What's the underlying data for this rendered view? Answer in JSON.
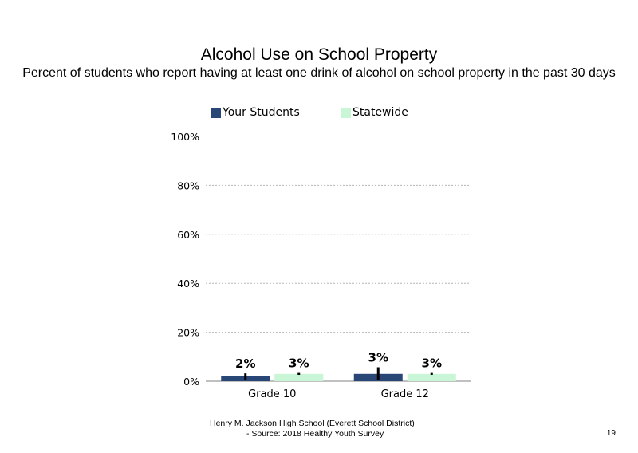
{
  "chart_data": {
    "type": "bar",
    "title": "Alcohol Use on School Property",
    "subtitle": "Percent of students who report having at least one drink of alcohol on school property in the past 30 days",
    "categories": [
      "Grade 10",
      "Grade 12"
    ],
    "series": [
      {
        "name": "Your Students",
        "values": [
          2,
          3
        ],
        "labels": [
          "2%",
          "3%"
        ],
        "color": "#284776",
        "error": [
          [
            0.5,
            3.2
          ],
          [
            0.6,
            5.7
          ]
        ]
      },
      {
        "name": "Statewide",
        "values": [
          3,
          3
        ],
        "labels": [
          "3%",
          "3%"
        ],
        "color": "#c9f6d6",
        "error": [
          [
            2.6,
            3.4
          ],
          [
            2.6,
            3.4
          ]
        ]
      }
    ],
    "ylim": [
      0,
      100
    ],
    "yticks": [
      "0%",
      "20%",
      "40%",
      "60%",
      "80%",
      "100%"
    ],
    "ytick_values": [
      0,
      20,
      40,
      60,
      80,
      100
    ],
    "grid": true,
    "legend": "top"
  },
  "footer": {
    "line1": "Henry M. Jackson High School (Everett School District)",
    "line2": "- Source: 2018 Healthy Youth Survey"
  },
  "page_number": "19"
}
